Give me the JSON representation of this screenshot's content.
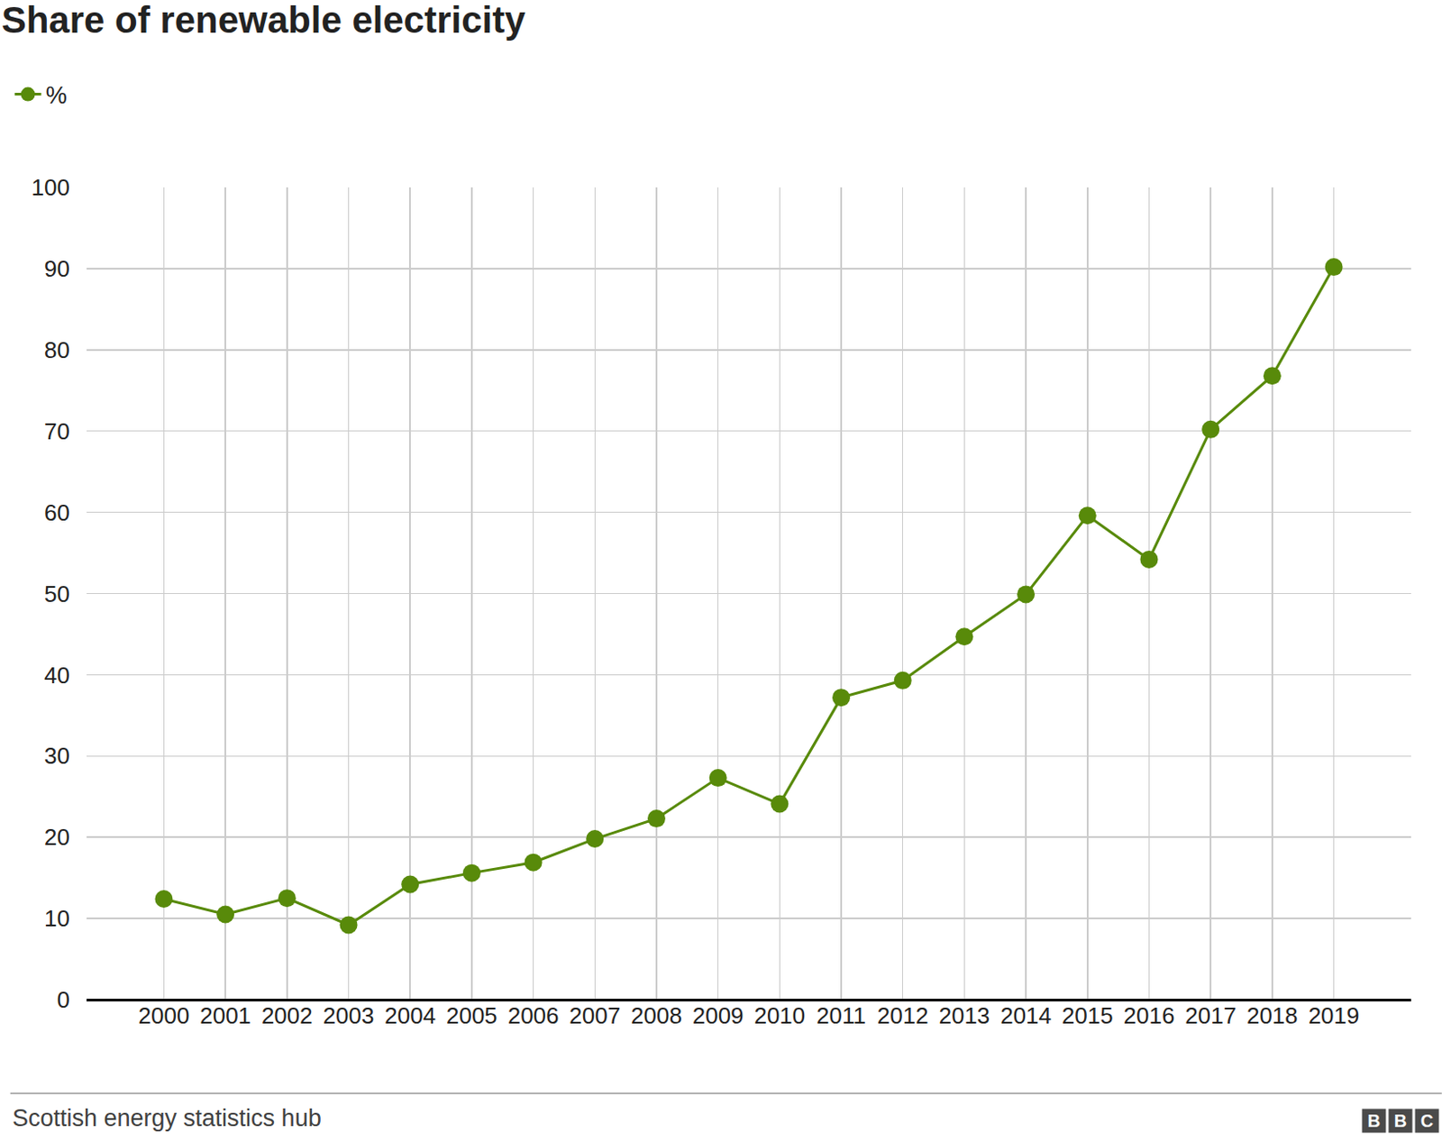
{
  "chart_data": {
    "type": "line",
    "title": "Share of renewable electricity",
    "source": "Scottish energy statistics hub",
    "logo": "BBC",
    "categories": [
      "2000",
      "2001",
      "2002",
      "2003",
      "2004",
      "2005",
      "2006",
      "2007",
      "2008",
      "2009",
      "2010",
      "2011",
      "2012",
      "2013",
      "2014",
      "2015",
      "2016",
      "2017",
      "2018",
      "2019"
    ],
    "series": [
      {
        "name": "%",
        "color": "#588a0a",
        "marker": "circle",
        "line_style": "solid",
        "values": [
          12.4,
          10.5,
          12.5,
          9.2,
          14.2,
          15.6,
          16.9,
          19.8,
          22.3,
          27.3,
          24.1,
          37.2,
          39.3,
          44.7,
          49.9,
          59.6,
          54.2,
          70.2,
          76.8,
          90.2
        ]
      }
    ],
    "ylim": [
      0,
      100
    ],
    "yticks": [
      0,
      10,
      20,
      30,
      40,
      50,
      60,
      70,
      80,
      90,
      100
    ],
    "grid": true,
    "legend": "top-left"
  }
}
